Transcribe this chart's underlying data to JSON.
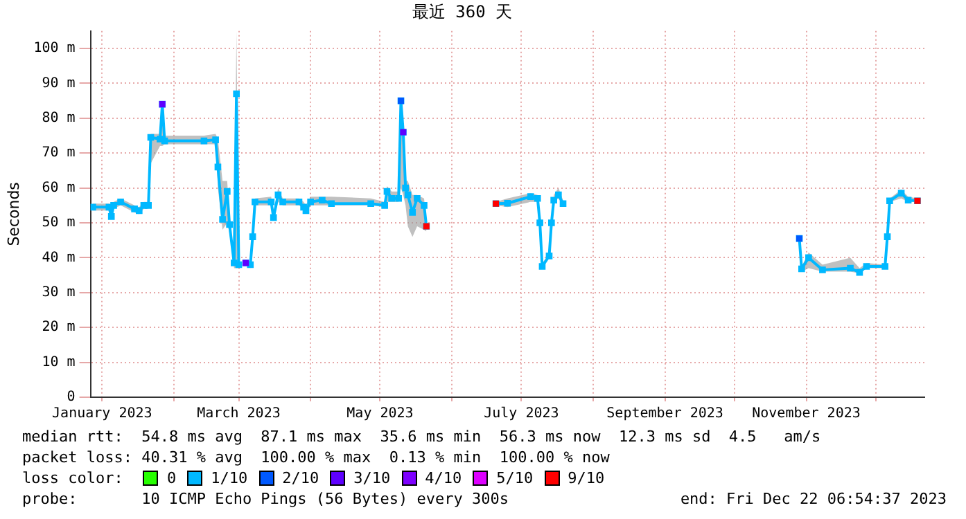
{
  "chart_data": {
    "type": "line",
    "title": "最近 360 天",
    "ylabel": "Seconds",
    "legend_title": "loss color:",
    "legend": "bottom",
    "grid": true,
    "marker": "square",
    "xlim": [
      "2022-12-27",
      "2023-12-22"
    ],
    "xticks": [
      {
        "value": "2023-01-01",
        "label": "January 2023"
      },
      {
        "value": "2023-02-01",
        "label": null
      },
      {
        "value": "2023-03-01",
        "label": "March 2023"
      },
      {
        "value": "2023-04-01",
        "label": null
      },
      {
        "value": "2023-05-01",
        "label": "May 2023"
      },
      {
        "value": "2023-06-01",
        "label": null
      },
      {
        "value": "2023-07-01",
        "label": "July 2023"
      },
      {
        "value": "2023-08-01",
        "label": null
      },
      {
        "value": "2023-09-01",
        "label": "September 2023"
      },
      {
        "value": "2023-10-01",
        "label": null
      },
      {
        "value": "2023-11-01",
        "label": "November 2023"
      },
      {
        "value": "2023-12-01",
        "label": null
      }
    ],
    "ylim": [
      0,
      105
    ],
    "yticks": [
      0,
      {
        "value": 10,
        "label": "10 m"
      },
      {
        "value": 20,
        "label": "20 m"
      },
      {
        "value": 30,
        "label": "30 m"
      },
      {
        "value": 40,
        "label": "40 m"
      },
      {
        "value": 50,
        "label": "50 m"
      },
      {
        "value": 60,
        "label": "60 m"
      },
      {
        "value": 70,
        "label": "70 m"
      },
      {
        "value": 80,
        "label": "80 m"
      },
      {
        "value": 90,
        "label": "90 m"
      },
      {
        "value": 100,
        "label": "100 m"
      }
    ],
    "series": [
      {
        "name": "0",
        "type": "scatter",
        "color": "#26ff00"
      },
      {
        "name": "1/10",
        "color": "#00b8ff",
        "x": [
          "2022-12-28",
          "2023-01-04",
          "2023-01-05",
          "2023-01-06",
          "2023-01-09",
          "2023-01-15",
          "2023-01-17",
          "2023-01-19",
          "2023-01-21",
          "2023-01-22",
          "2023-01-26",
          "2023-01-27",
          "2023-01-28",
          "2023-02-14",
          "2023-02-19",
          "2023-02-20",
          "2023-02-22",
          "2023-02-24",
          "2023-02-25",
          "2023-02-27",
          "2023-02-28",
          "2023-03-01",
          "2023-03-03",
          "2023-03-04",
          "2023-03-06",
          "2023-03-07",
          "2023-03-08",
          "2023-03-15",
          "2023-03-16",
          "2023-03-18",
          "2023-03-20",
          "2023-03-27",
          "2023-03-29",
          "2023-03-30",
          "2023-04-01",
          "2023-04-06",
          "2023-04-10",
          "2023-04-27",
          "2023-05-03",
          "2023-05-04",
          "2023-05-06",
          "2023-05-09",
          "2023-05-10",
          "2023-05-11",
          "2023-05-12",
          "2023-05-13",
          "2023-05-15",
          "2023-05-17",
          "2023-05-20",
          "2023-05-21",
          "2023-05-23",
          "2023-06-20",
          "2023-06-25",
          "2023-07-05",
          "2023-07-08",
          "2023-07-09",
          "2023-07-10",
          "2023-07-13",
          "2023-07-14",
          "2023-07-15",
          "2023-07-17",
          "2023-07-19",
          "2023-07-25",
          "2023-10-29",
          "2023-10-30",
          "2023-11-02",
          "2023-11-08",
          "2023-11-20",
          "2023-11-24",
          "2023-11-27",
          "2023-12-05",
          "2023-12-06",
          "2023-12-07",
          "2023-12-12",
          "2023-12-15",
          "2023-12-19"
        ],
        "values": [
          54.5,
          54.5,
          51.8,
          55,
          56,
          54,
          53.5,
          55,
          55,
          74.5,
          74,
          84,
          73.5,
          73.5,
          73.8,
          66,
          51,
          59,
          49.5,
          38.5,
          87,
          38,
          null,
          38.5,
          38,
          46,
          56,
          56,
          51.5,
          58,
          56,
          56,
          54.5,
          53.5,
          56,
          56.5,
          55.5,
          55.5,
          55,
          59,
          57,
          57,
          85,
          76,
          60,
          58,
          53,
          57,
          55,
          49,
          null,
          55.5,
          55.6,
          57.5,
          57,
          50,
          37.5,
          40.5,
          50,
          56.5,
          58,
          55.5,
          null,
          45.5,
          36.8,
          40,
          36.5,
          37,
          35.8,
          37.5,
          37.5,
          46,
          56.3,
          58.5,
          56.5,
          56.3
        ],
        "lower": [
          53.5,
          53.5,
          51,
          54,
          55,
          53,
          52.5,
          54,
          54,
          67,
          72,
          72,
          72.5,
          72.5,
          72.5,
          60,
          48,
          50,
          47,
          37,
          37,
          37,
          null,
          38,
          37,
          44,
          55,
          55,
          51,
          56,
          55,
          55,
          54,
          53,
          55,
          55,
          55,
          55,
          54.5,
          56,
          56,
          56,
          60,
          58,
          55,
          49,
          46,
          49,
          48,
          47.5,
          null,
          55,
          54.5,
          56,
          56,
          49,
          37,
          40,
          49,
          56,
          57,
          55,
          null,
          44,
          36,
          37,
          36,
          36,
          35.5,
          37,
          37,
          45,
          56,
          57,
          56,
          56
        ],
        "upper": [
          55.5,
          55.5,
          53,
          56,
          57,
          55,
          54.5,
          56,
          56,
          75.5,
          75.5,
          85,
          75,
          75,
          75.5,
          74,
          62,
          62,
          52,
          40,
          105,
          40,
          null,
          39,
          39,
          47,
          57,
          57.5,
          53,
          60,
          57,
          57,
          56,
          55,
          57.5,
          57.5,
          57.5,
          57,
          56,
          60.5,
          59,
          59,
          85,
          78,
          62,
          62,
          58,
          58,
          57,
          50.5,
          null,
          56,
          57,
          58.5,
          58,
          51,
          38.5,
          41,
          51,
          58,
          60,
          56.5,
          null,
          46.5,
          37.5,
          41.5,
          38,
          40,
          37,
          38.5,
          38,
          47,
          57,
          59.5,
          57.5,
          57
        ]
      },
      {
        "name": "2/10",
        "type": "scatter",
        "color": "#0059ff",
        "x": [
          "2023-05-10",
          "2023-10-29"
        ],
        "values": [
          85,
          45.5
        ]
      },
      {
        "name": "3/10",
        "type": "scatter",
        "color": "#5e00ff",
        "x": [
          "2023-01-27",
          "2023-03-04",
          "2023-05-11"
        ],
        "values": [
          84,
          38.5,
          76
        ]
      },
      {
        "name": "4/10",
        "type": "scatter",
        "color": "#7e00ff"
      },
      {
        "name": "5/10",
        "type": "scatter",
        "color": "#dd00ff"
      },
      {
        "name": "9/10",
        "type": "scatter",
        "color": "#ff0000",
        "x": [
          "2023-05-21",
          "2023-06-20",
          "2023-12-19"
        ],
        "values": [
          49,
          55.5,
          56.3
        ]
      }
    ],
    "annotations": [
      "median rtt:  54.8 ms avg  87.1 ms max  35.6 ms min  56.3 ms now  12.3 ms sd  4.5   am/s",
      "packet loss: 40.31 % avg  100.00 % max  0.13 % min  100.00 % now",
      "probe:       10 ICMP Echo Pings (56 Bytes) every 300s",
      "end: Fri Dec 22 06:54:37 2023"
    ]
  }
}
